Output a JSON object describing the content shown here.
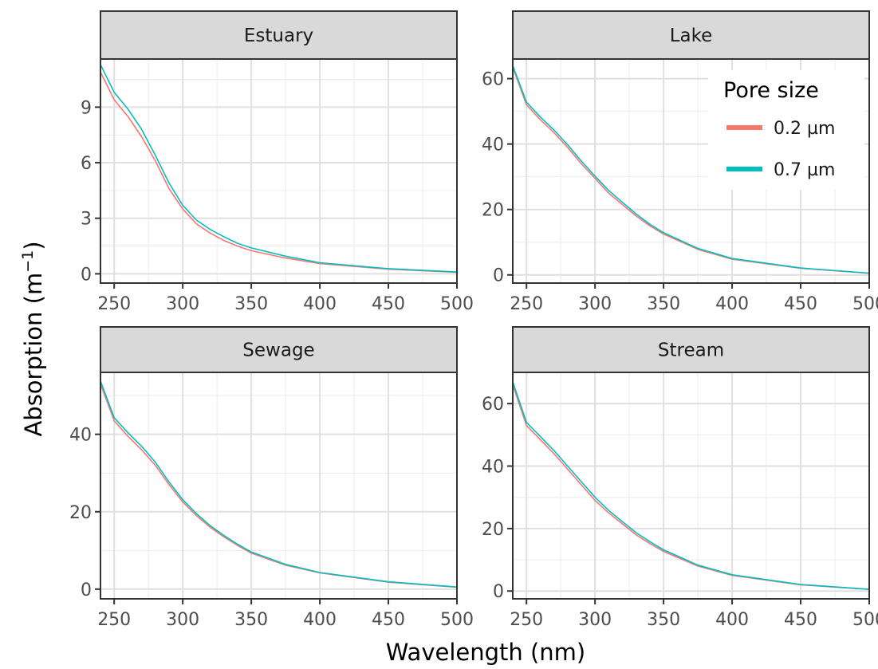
{
  "chart_data": {
    "type": "line",
    "xlabel": "Wavelength (nm)",
    "ylabel_main": "Absorption (m",
    "ylabel_sup": "−1",
    "ylabel_close": ")",
    "xlim": [
      240,
      500
    ],
    "xticks": [
      250,
      300,
      350,
      400,
      450,
      500
    ],
    "grid": true,
    "legend": {
      "title": "Pore size",
      "placement": "top-right",
      "entries": [
        {
          "name": "0.2 µm",
          "color": "#f8766d"
        },
        {
          "name": "0.7 µm",
          "color": "#00bfc4"
        }
      ]
    },
    "panels": [
      {
        "title": "Estuary",
        "ylim": [
          -0.5,
          11.6
        ],
        "yticks": [
          0,
          3,
          6,
          9
        ],
        "x": [
          240,
          250,
          260,
          270,
          280,
          290,
          300,
          310,
          320,
          330,
          340,
          350,
          375,
          400,
          450,
          500
        ],
        "series": [
          {
            "name": "0.2 µm",
            "values": [
              10.9,
              9.4,
              8.5,
              7.4,
              6.1,
              4.6,
              3.5,
              2.7,
              2.2,
              1.8,
              1.5,
              1.25,
              0.85,
              0.55,
              0.25,
              0.08
            ]
          },
          {
            "name": "0.7 µm",
            "values": [
              11.3,
              9.8,
              8.9,
              7.8,
              6.4,
              4.9,
              3.7,
              2.9,
              2.4,
              2.0,
              1.65,
              1.4,
              0.95,
              0.6,
              0.28,
              0.1
            ]
          }
        ]
      },
      {
        "title": "Lake",
        "ylim": [
          -2.5,
          66
        ],
        "yticks": [
          0,
          20,
          40,
          60
        ],
        "x": [
          240,
          250,
          260,
          270,
          280,
          290,
          300,
          310,
          320,
          330,
          340,
          350,
          375,
          400,
          450,
          500
        ],
        "series": [
          {
            "name": "0.2 µm",
            "values": [
              63.5,
              52,
              47.5,
              43.5,
              39,
              34,
              29.5,
              25,
              21.5,
              18,
              15,
              12.5,
              7.8,
              4.8,
              2,
              0.5
            ]
          },
          {
            "name": "0.7 µm",
            "values": [
              64,
              52.8,
              48.3,
              44.3,
              39.8,
              34.8,
              30.2,
              25.8,
              22.2,
              18.6,
              15.5,
              12.9,
              8.1,
              5,
              2.1,
              0.55
            ]
          }
        ]
      },
      {
        "title": "Sewage",
        "ylim": [
          -2.5,
          56
        ],
        "yticks": [
          0,
          20,
          40
        ],
        "x": [
          240,
          250,
          260,
          270,
          280,
          290,
          300,
          310,
          320,
          330,
          340,
          350,
          375,
          400,
          450,
          500
        ],
        "series": [
          {
            "name": "0.2 µm",
            "values": [
              53,
              43.5,
              39.5,
              36,
              32,
              27,
              22.5,
              19,
              16,
              13.5,
              11.3,
              9.3,
              6.2,
              4.2,
              1.8,
              0.5
            ]
          },
          {
            "name": "0.7 µm",
            "values": [
              53.8,
              44.3,
              40.4,
              36.9,
              32.8,
              27.7,
              23.1,
              19.5,
              16.4,
              13.9,
              11.6,
              9.6,
              6.4,
              4.3,
              1.9,
              0.55
            ]
          }
        ]
      },
      {
        "title": "Stream",
        "ylim": [
          -2.5,
          70
        ],
        "yticks": [
          0,
          20,
          40,
          60
        ],
        "x": [
          240,
          250,
          260,
          270,
          280,
          290,
          300,
          310,
          320,
          330,
          340,
          350,
          375,
          400,
          450,
          500
        ],
        "series": [
          {
            "name": "0.2 µm",
            "values": [
              66,
              53,
              48.5,
              44,
              39,
              34,
              29,
              25,
              21.5,
              18,
              15.2,
              12.7,
              8,
              5,
              2,
              0.5
            ]
          },
          {
            "name": "0.7 µm",
            "values": [
              67,
              54,
              49.5,
              45,
              40,
              35,
              30,
              25.8,
              22.2,
              18.7,
              15.8,
              13.2,
              8.3,
              5.2,
              2.1,
              0.55
            ]
          }
        ]
      }
    ]
  }
}
